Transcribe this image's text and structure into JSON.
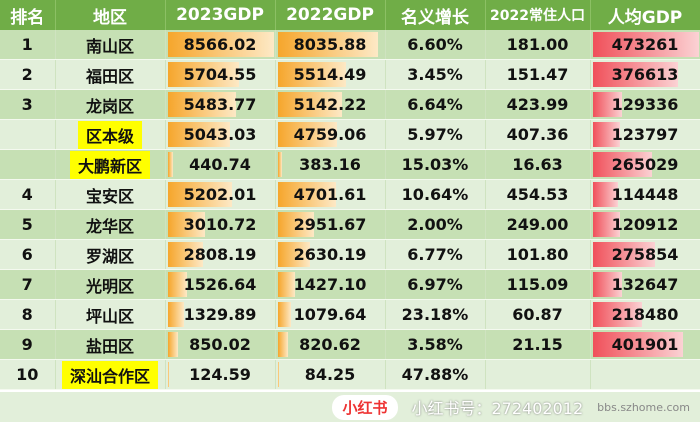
{
  "headers": [
    "排名",
    "地区",
    "2023GDP",
    "2022GDP",
    "名义增长",
    "2022常住人口",
    "人均GDP"
  ],
  "rows": [
    {
      "rank": "1",
      "region": "南山区",
      "gdp2023": "8566.02",
      "gdp2022": "8035.88",
      "growth": "6.60%",
      "pop": "181.00",
      "per_capita": "473261",
      "highlight": false
    },
    {
      "rank": "2",
      "region": "福田区",
      "gdp2023": "5704.55",
      "gdp2022": "5514.49",
      "growth": "3.45%",
      "pop": "151.47",
      "per_capita": "376613",
      "highlight": false
    },
    {
      "rank": "3",
      "region": "龙岗区",
      "gdp2023": "5483.77",
      "gdp2022": "5142.22",
      "growth": "6.64%",
      "pop": "423.99",
      "per_capita": "129336",
      "highlight": false
    },
    {
      "rank": "",
      "region": "区本级",
      "gdp2023": "5043.03",
      "gdp2022": "4759.06",
      "growth": "5.97%",
      "pop": "407.36",
      "per_capita": "123797",
      "highlight": true
    },
    {
      "rank": "",
      "region": "大鹏新区",
      "gdp2023": "440.74",
      "gdp2022": "383.16",
      "growth": "15.03%",
      "pop": "16.63",
      "per_capita": "265029",
      "highlight": true
    },
    {
      "rank": "4",
      "region": "宝安区",
      "gdp2023": "5202.01",
      "gdp2022": "4701.61",
      "growth": "10.64%",
      "pop": "454.53",
      "per_capita": "114448",
      "highlight": false
    },
    {
      "rank": "5",
      "region": "龙华区",
      "gdp2023": "3010.72",
      "gdp2022": "2951.67",
      "growth": "2.00%",
      "pop": "249.00",
      "per_capita": "120912",
      "highlight": false
    },
    {
      "rank": "6",
      "region": "罗湖区",
      "gdp2023": "2808.19",
      "gdp2022": "2630.19",
      "growth": "6.77%",
      "pop": "101.80",
      "per_capita": "275854",
      "highlight": false
    },
    {
      "rank": "7",
      "region": "光明区",
      "gdp2023": "1526.64",
      "gdp2022": "1427.10",
      "growth": "6.97%",
      "pop": "115.09",
      "per_capita": "132647",
      "highlight": false
    },
    {
      "rank": "8",
      "region": "坪山区",
      "gdp2023": "1329.89",
      "gdp2022": "1079.64",
      "growth": "23.18%",
      "pop": "60.87",
      "per_capita": "218480",
      "highlight": false
    },
    {
      "rank": "9",
      "region": "盐田区",
      "gdp2023": "850.02",
      "gdp2022": "820.62",
      "growth": "3.58%",
      "pop": "21.15",
      "per_capita": "401901",
      "highlight": false
    },
    {
      "rank": "10",
      "region": "深汕合作区",
      "gdp2023": "124.59",
      "gdp2022": "84.25",
      "growth": "47.88%",
      "pop": "",
      "per_capita": "",
      "highlight": true
    }
  ],
  "bar_colors": {
    "gdp": "#f6a62c",
    "per_capita": "#f0505a",
    "header": "#70ad47",
    "highlight": "#ffff00"
  },
  "watermark": {
    "badge": "小红书",
    "id": "小红书号：272402012",
    "site": "bbs.szhome.com"
  }
}
